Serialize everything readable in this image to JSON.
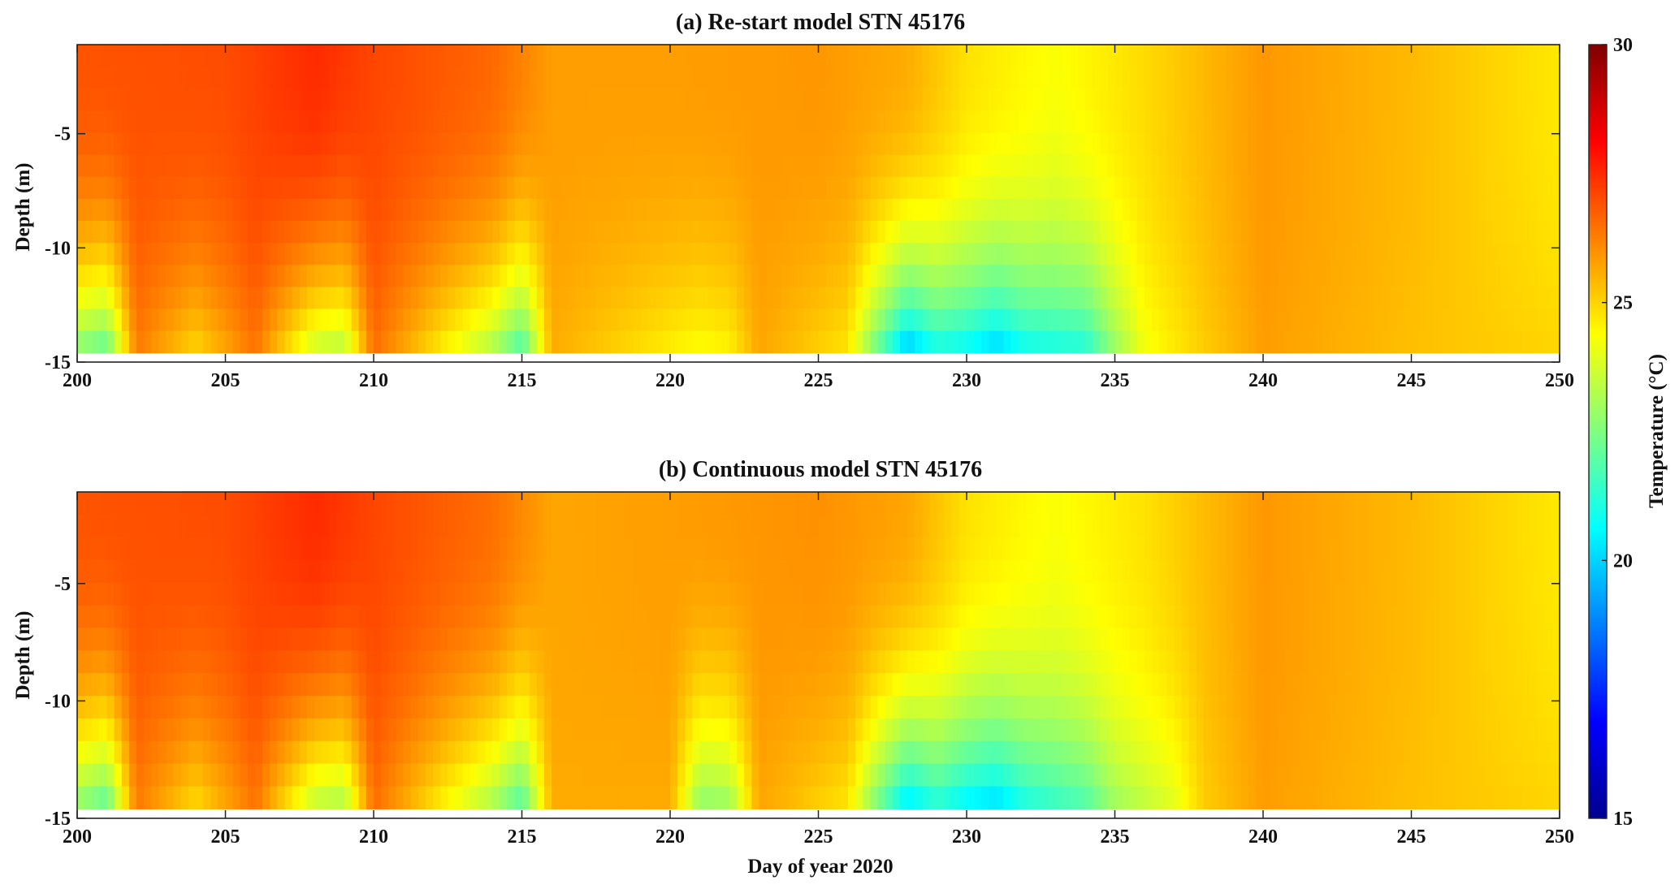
{
  "chart_data": [
    {
      "type": "heatmap",
      "title": "(a) Re-start model STN 45176",
      "xlabel": "",
      "ylabel": "Depth (m)",
      "xlim": [
        200,
        250
      ],
      "ylim": [
        -15,
        -1.1
      ],
      "x_ticks": [
        "200",
        "205",
        "210",
        "215",
        "220",
        "225",
        "230",
        "235",
        "240",
        "245",
        "250"
      ],
      "y_ticks": [
        "-5",
        "-10",
        "-15"
      ],
      "surface_temperature_by_day": [
        [
          200,
          26.9
        ],
        [
          205,
          27.0
        ],
        [
          208,
          27.5
        ],
        [
          210,
          27.1
        ],
        [
          214,
          26.6
        ],
        [
          216,
          25.8
        ],
        [
          220,
          25.8
        ],
        [
          225,
          25.9
        ],
        [
          228,
          25.6
        ],
        [
          230,
          24.8
        ],
        [
          233,
          24.3
        ],
        [
          236,
          24.9
        ],
        [
          240,
          25.9
        ],
        [
          245,
          25.4
        ],
        [
          250,
          24.7
        ]
      ],
      "bottom_temperature_by_day": [
        [
          200,
          22.5
        ],
        [
          201,
          21.9
        ],
        [
          202,
          26.3
        ],
        [
          204,
          24.9
        ],
        [
          206,
          26.4
        ],
        [
          208,
          23.5
        ],
        [
          209,
          23.2
        ],
        [
          210,
          26.5
        ],
        [
          214,
          23.1
        ],
        [
          215,
          21.5
        ],
        [
          216,
          25.6
        ],
        [
          221,
          24.3
        ],
        [
          222,
          24.5
        ],
        [
          223,
          25.7
        ],
        [
          226,
          24.7
        ],
        [
          227,
          22.0
        ],
        [
          228,
          19.5
        ],
        [
          229,
          20.8
        ],
        [
          230,
          20.5
        ],
        [
          231,
          19.8
        ],
        [
          232,
          20.7
        ],
        [
          234,
          21.0
        ],
        [
          235,
          22.8
        ],
        [
          236,
          24.2
        ],
        [
          238,
          25.1
        ],
        [
          240,
          25.8
        ],
        [
          245,
          25.3
        ],
        [
          250,
          25.0
        ]
      ]
    },
    {
      "type": "heatmap",
      "title": "(b) Continuous model STN 45176",
      "xlabel": "Day of year 2020",
      "ylabel": "Depth (m)",
      "xlim": [
        200,
        250
      ],
      "ylim": [
        -15,
        -1.1
      ],
      "x_ticks": [
        "200",
        "205",
        "210",
        "215",
        "220",
        "225",
        "230",
        "235",
        "240",
        "245",
        "250"
      ],
      "y_ticks": [
        "-5",
        "-10",
        "-15"
      ],
      "surface_temperature_by_day": [
        [
          200,
          26.9
        ],
        [
          205,
          27.0
        ],
        [
          208,
          27.5
        ],
        [
          210,
          27.1
        ],
        [
          214,
          26.5
        ],
        [
          216,
          25.7
        ],
        [
          220,
          25.8
        ],
        [
          225,
          26.0
        ],
        [
          228,
          25.7
        ],
        [
          230,
          24.8
        ],
        [
          233,
          24.3
        ],
        [
          236,
          24.8
        ],
        [
          240,
          25.9
        ],
        [
          245,
          25.4
        ],
        [
          250,
          24.7
        ]
      ],
      "bottom_temperature_by_day": [
        [
          200,
          22.6
        ],
        [
          201,
          21.8
        ],
        [
          202,
          26.3
        ],
        [
          204,
          24.8
        ],
        [
          206,
          26.4
        ],
        [
          208,
          23.3
        ],
        [
          209,
          23.0
        ],
        [
          210,
          26.5
        ],
        [
          214,
          23.0
        ],
        [
          215,
          21.6
        ],
        [
          216,
          25.6
        ],
        [
          220,
          25.6
        ],
        [
          221,
          22.6
        ],
        [
          222,
          22.8
        ],
        [
          223,
          25.7
        ],
        [
          226,
          24.7
        ],
        [
          227,
          22.2
        ],
        [
          228,
          20.0
        ],
        [
          229,
          21.0
        ],
        [
          230,
          20.3
        ],
        [
          231,
          19.9
        ],
        [
          232,
          20.9
        ],
        [
          234,
          21.7
        ],
        [
          235,
          22.9
        ],
        [
          237,
          23.9
        ],
        [
          238,
          25.1
        ],
        [
          240,
          25.8
        ],
        [
          245,
          25.3
        ],
        [
          250,
          25.0
        ]
      ]
    }
  ],
  "colorbar": {
    "label": "Temperature (°C)",
    "min": 15,
    "max": 30,
    "ticks": [
      "30",
      "25",
      "20",
      "15"
    ],
    "colormap": "jet",
    "colors": [
      "#00008f",
      "#0000ff",
      "#00ffff",
      "#ffff00",
      "#ff0000",
      "#800000"
    ]
  }
}
